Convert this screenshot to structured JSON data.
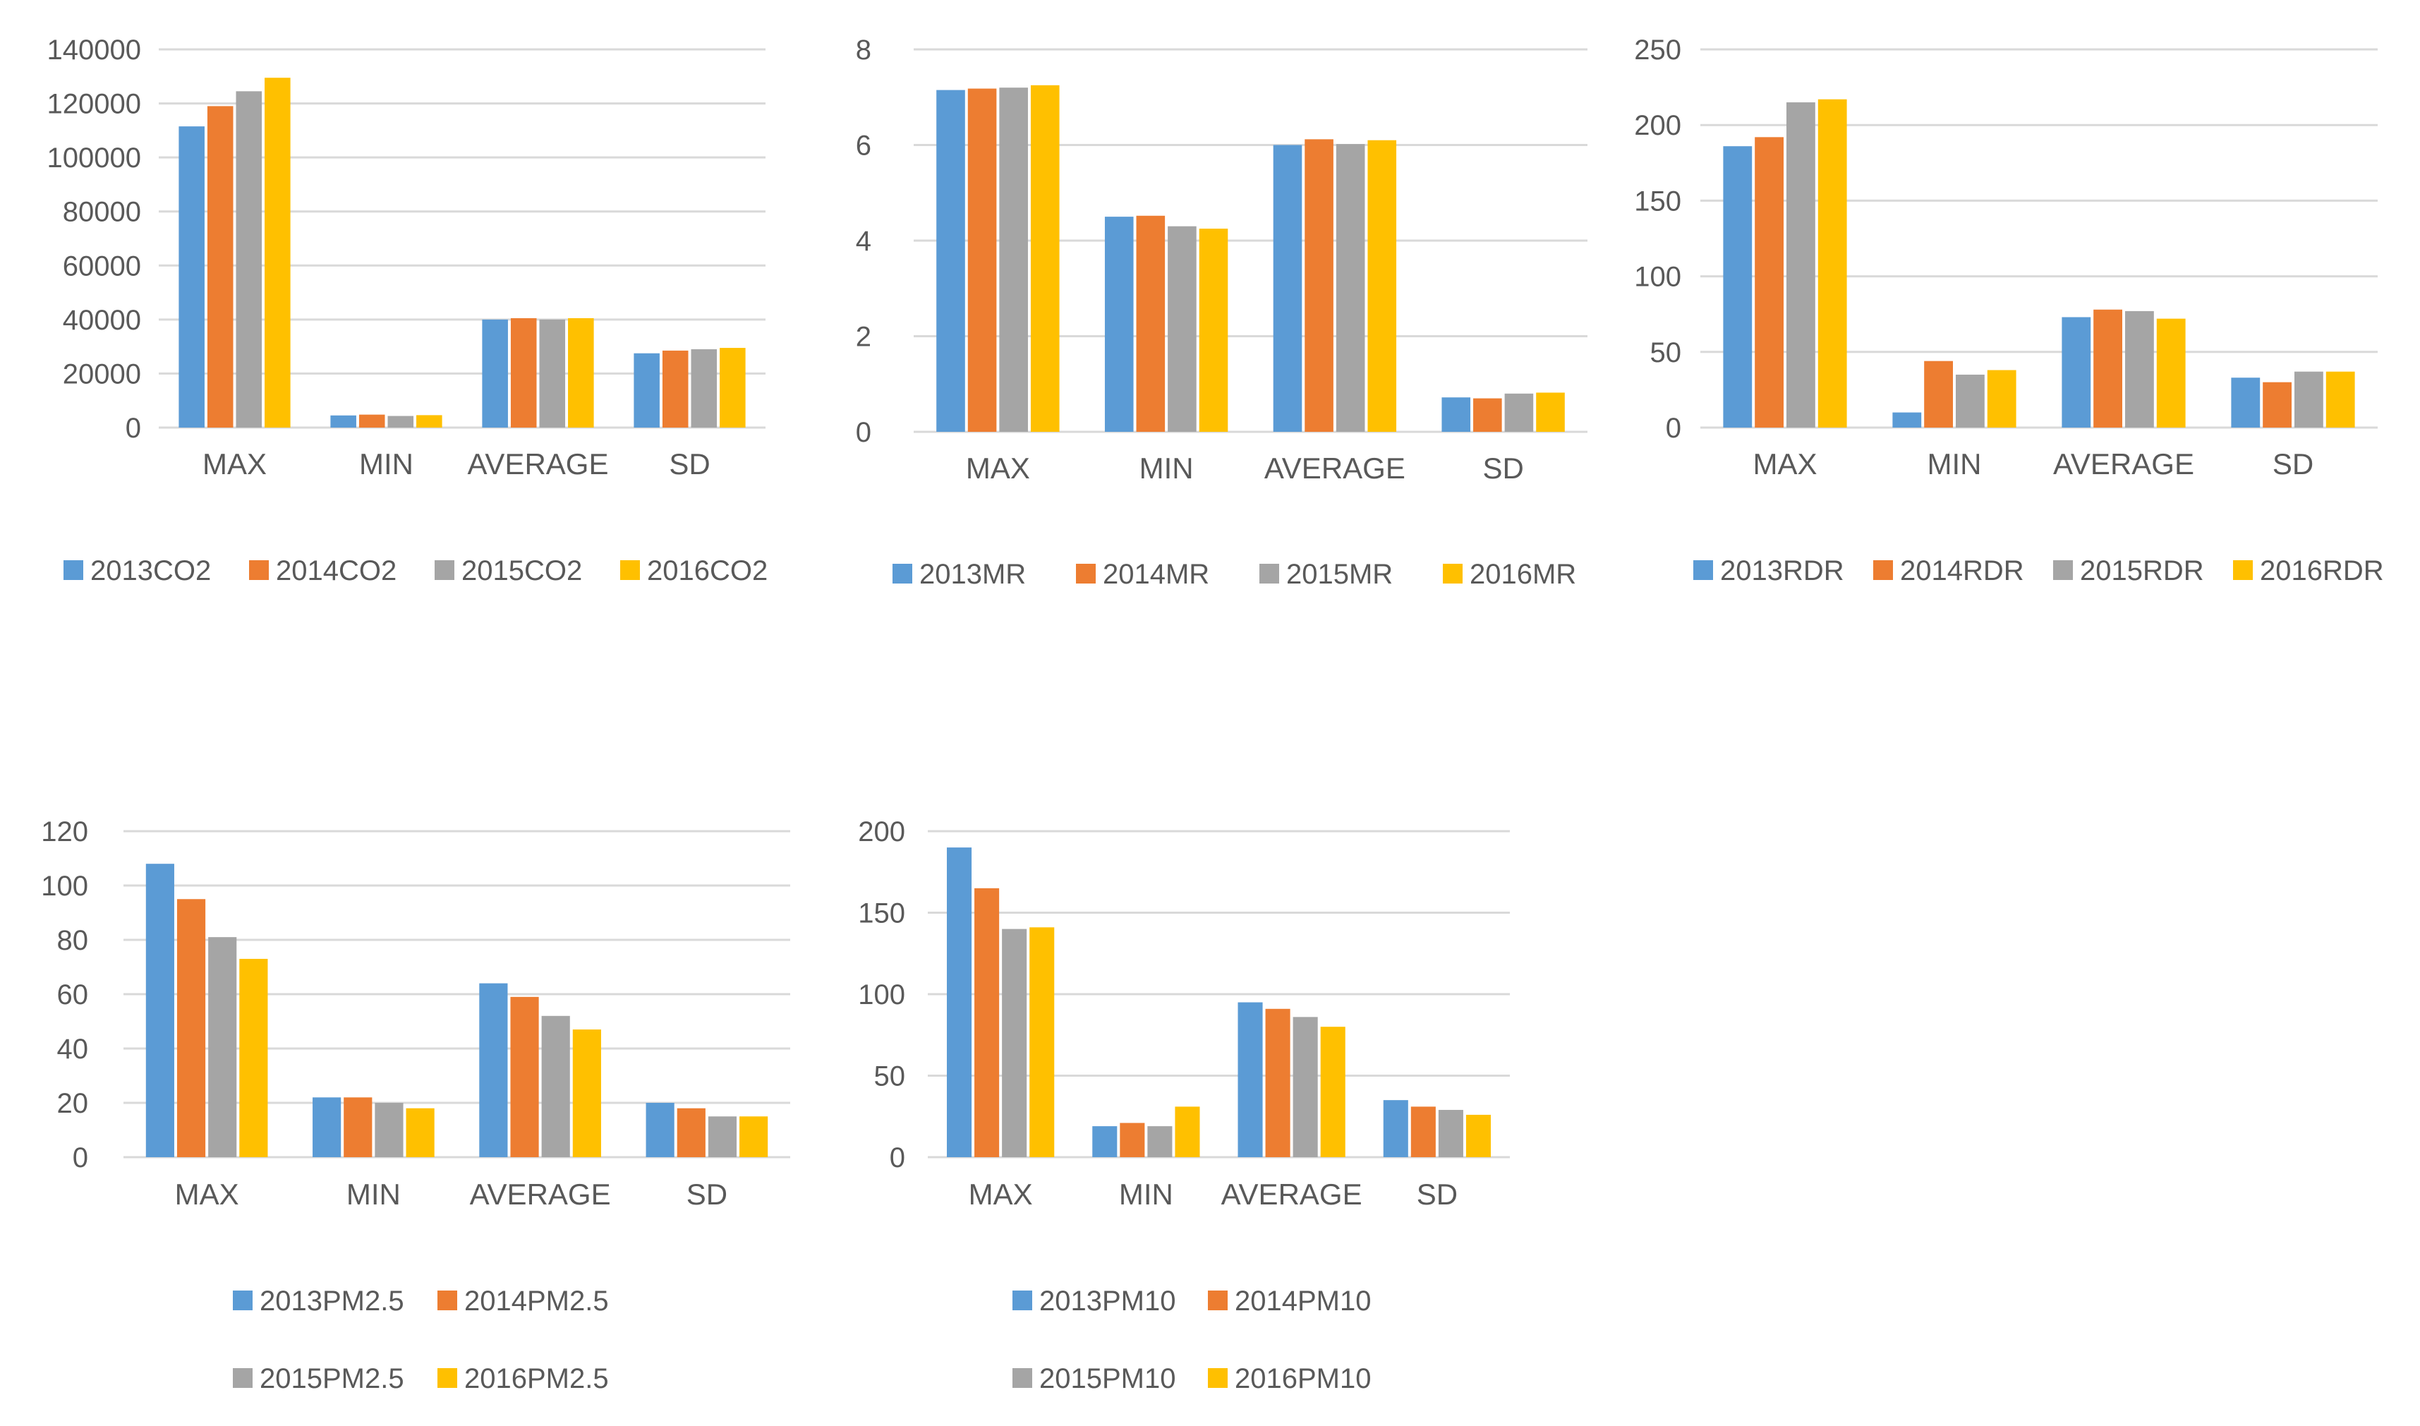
{
  "colors": {
    "2013": "#5B9BD5",
    "2014": "#ED7D31",
    "2015": "#A5A5A5",
    "2016": "#FFC000",
    "grid": "#D9D9D9",
    "text": "#595959"
  },
  "chart_data": [
    {
      "type": "bar",
      "title": "",
      "categories": [
        "MAX",
        "MIN",
        "AVERAGE",
        "SD"
      ],
      "ylim": [
        0,
        140000
      ],
      "yticks": [
        0,
        20000,
        40000,
        60000,
        80000,
        100000,
        120000,
        140000
      ],
      "grid": true,
      "legend_position": "bottom",
      "series": [
        {
          "name": "2013CO2",
          "values": [
            111500,
            4500,
            40000,
            27500
          ]
        },
        {
          "name": "2014CO2",
          "values": [
            119000,
            4800,
            40500,
            28500
          ]
        },
        {
          "name": "2015CO2",
          "values": [
            124500,
            4300,
            40000,
            29000
          ]
        },
        {
          "name": "2016CO2",
          "values": [
            129500,
            4600,
            40500,
            29500
          ]
        }
      ]
    },
    {
      "type": "bar",
      "title": "",
      "categories": [
        "MAX",
        "MIN",
        "AVERAGE",
        "SD"
      ],
      "ylim": [
        0,
        8
      ],
      "yticks": [
        0,
        2,
        4,
        6,
        8
      ],
      "grid": true,
      "legend_position": "bottom",
      "series": [
        {
          "name": "2013MR",
          "values": [
            7.15,
            4.5,
            6.0,
            0.72
          ]
        },
        {
          "name": "2014MR",
          "values": [
            7.18,
            4.52,
            6.12,
            0.7
          ]
        },
        {
          "name": "2015MR",
          "values": [
            7.2,
            4.3,
            6.02,
            0.8
          ]
        },
        {
          "name": "2016MR",
          "values": [
            7.25,
            4.25,
            6.1,
            0.82
          ]
        }
      ]
    },
    {
      "type": "bar",
      "title": "",
      "categories": [
        "MAX",
        "MIN",
        "AVERAGE",
        "SD"
      ],
      "ylim": [
        0,
        250
      ],
      "yticks": [
        0,
        50,
        100,
        150,
        200,
        250
      ],
      "grid": true,
      "legend_position": "bottom",
      "series": [
        {
          "name": "2013RDR",
          "values": [
            186,
            10,
            73,
            33
          ]
        },
        {
          "name": "2014RDR",
          "values": [
            192,
            44,
            78,
            30
          ]
        },
        {
          "name": "2015RDR",
          "values": [
            215,
            35,
            77,
            37
          ]
        },
        {
          "name": "2016RDR",
          "values": [
            217,
            38,
            72,
            37
          ]
        }
      ]
    },
    {
      "type": "bar",
      "title": "",
      "categories": [
        "MAX",
        "MIN",
        "AVERAGE",
        "SD"
      ],
      "ylim": [
        0,
        120
      ],
      "yticks": [
        0,
        20,
        40,
        60,
        80,
        100,
        120
      ],
      "grid": true,
      "legend_position": "bottom",
      "series": [
        {
          "name": "2013PM2.5",
          "values": [
            108,
            22,
            64,
            20
          ]
        },
        {
          "name": "2014PM2.5",
          "values": [
            95,
            22,
            59,
            18
          ]
        },
        {
          "name": "2015PM2.5",
          "values": [
            81,
            20,
            52,
            15
          ]
        },
        {
          "name": "2016PM2.5",
          "values": [
            73,
            18,
            47,
            15
          ]
        }
      ]
    },
    {
      "type": "bar",
      "title": "",
      "categories": [
        "MAX",
        "MIN",
        "AVERAGE",
        "SD"
      ],
      "ylim": [
        0,
        200
      ],
      "yticks": [
        0,
        50,
        100,
        150,
        200
      ],
      "grid": true,
      "legend_position": "bottom",
      "series": [
        {
          "name": "2013PM10",
          "values": [
            190,
            19,
            95,
            35
          ]
        },
        {
          "name": "2014PM10",
          "values": [
            165,
            21,
            91,
            31
          ]
        },
        {
          "name": "2015PM10",
          "values": [
            140,
            19,
            86,
            29
          ]
        },
        {
          "name": "2016PM10",
          "values": [
            141,
            31,
            80,
            26
          ]
        }
      ]
    }
  ]
}
